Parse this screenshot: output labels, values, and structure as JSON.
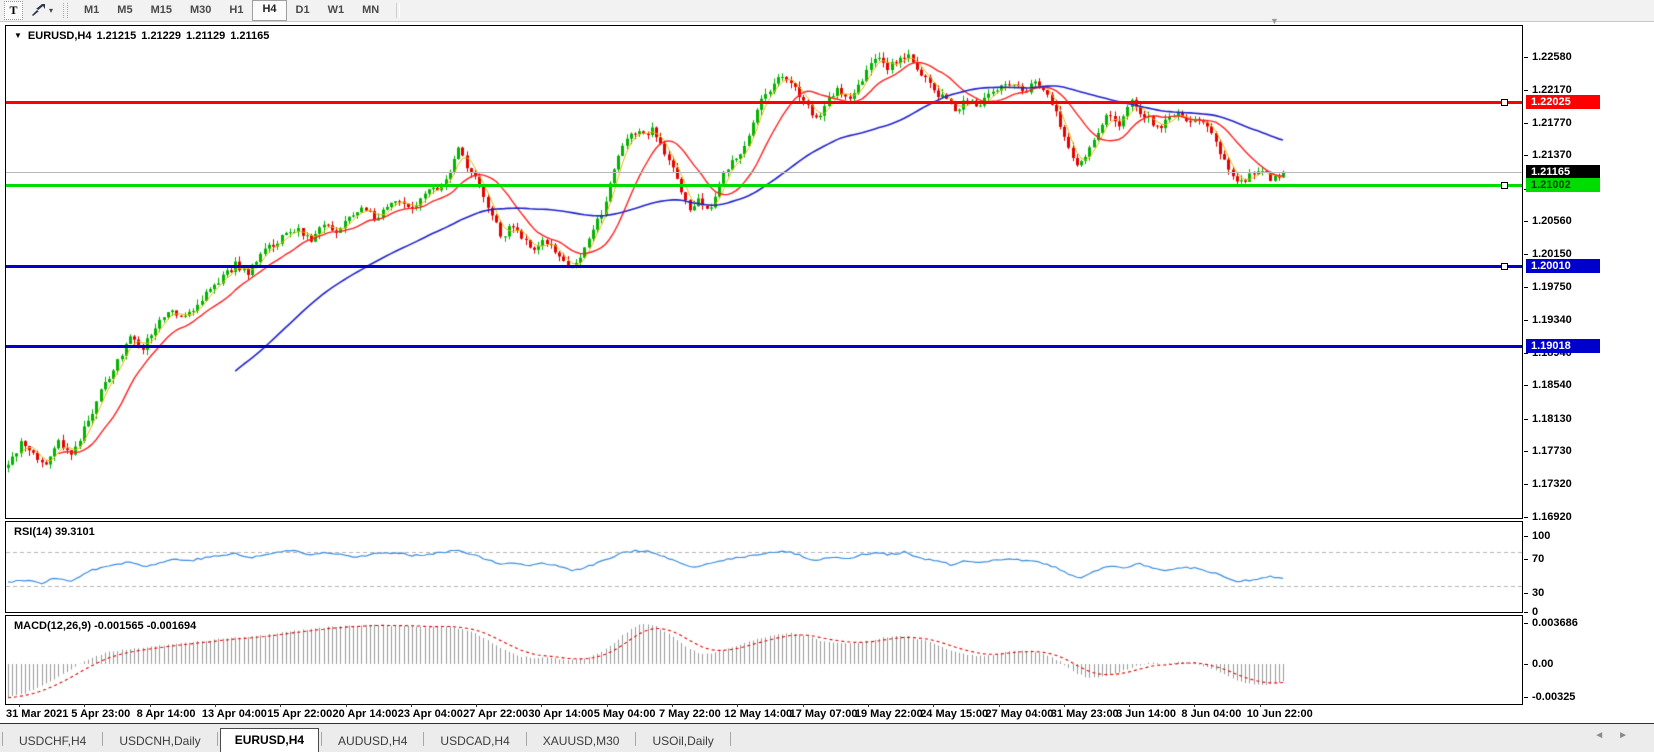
{
  "toolbar": {
    "text_tool_label": "T",
    "timeframes": [
      "M1",
      "M5",
      "M15",
      "M30",
      "H1",
      "H4",
      "D1",
      "W1",
      "MN"
    ],
    "active_timeframe": "H4"
  },
  "header": {
    "symbol_period": "EURUSD,H4",
    "quotes": {
      "o": "1.21215",
      "h": "1.21229",
      "l": "1.21129",
      "c": "1.21165"
    }
  },
  "price_axis": {
    "ticks": [
      "1.22580",
      "1.22170",
      "1.21770",
      "1.21370",
      "1.20960",
      "1.20560",
      "1.20150",
      "1.19750",
      "1.19340",
      "1.18940",
      "1.18540",
      "1.18130",
      "1.17730",
      "1.17320",
      "1.16920"
    ],
    "levels": [
      {
        "value": "1.22025",
        "color": "#ff0000",
        "text": "#ffffff",
        "thickness": 3,
        "handle": true
      },
      {
        "value": "1.21165",
        "color": "#b8b8b8",
        "badge_bg": "#000000",
        "text": "#ffffff",
        "thickness": 1,
        "handle": false
      },
      {
        "value": "1.21002",
        "color": "#00dc00",
        "text": "#004000",
        "thickness": 3,
        "handle": true
      },
      {
        "value": "1.20010",
        "color": "#0000cd",
        "text": "#ffffff",
        "thickness": 3,
        "handle": true
      },
      {
        "value": "1.19018",
        "color": "#0000cd",
        "text": "#ffffff",
        "thickness": 3,
        "handle": false
      }
    ]
  },
  "rsi": {
    "label": "RSI(14)",
    "value": "39.3101",
    "axis_labels": [
      "100",
      "70",
      "30",
      "0"
    ],
    "line_color": "#3c8ce0"
  },
  "macd": {
    "label": "MACD(12,26,9)",
    "main_value": "-0.001565",
    "signal_value": "-0.001694",
    "axis_labels": [
      "0.003686",
      "0.00",
      "-0.00325"
    ],
    "histogram_color": "#9a9a9a",
    "signal_color": "#e00000"
  },
  "x_axis": {
    "labels": [
      "31 Mar 2021",
      "5 Apr 23:00",
      "8 Apr 14:00",
      "13 Apr 04:00",
      "15 Apr 22:00",
      "20 Apr 14:00",
      "23 Apr 04:00",
      "27 Apr 22:00",
      "30 Apr 14:00",
      "5 May 04:00",
      "7 May 22:00",
      "12 May 14:00",
      "17 May 07:00",
      "19 May 22:00",
      "24 May 15:00",
      "27 May 04:00",
      "31 May 23:00",
      "3 Jun 14:00",
      "8 Jun 04:00",
      "10 Jun 22:00"
    ]
  },
  "tabbar": {
    "tabs": [
      "USDCHF,H4",
      "USDCNH,Daily",
      "EURUSD,H4",
      "AUDUSD,H4",
      "USDCAD,H4",
      "XAUUSD,M30",
      "USOil,Daily"
    ],
    "active": "EURUSD,H4"
  },
  "chart_data": {
    "type": "candlestick",
    "symbol": "EURUSD",
    "period": "H4",
    "current": {
      "open": 1.21215,
      "high": 1.21229,
      "low": 1.21129,
      "close": 1.21165
    },
    "y_axis_range": [
      1.1692,
      1.2296
    ],
    "horizontal_levels": [
      1.22025,
      1.21165,
      1.21002,
      1.2001,
      1.19018
    ],
    "colors": {
      "up": "#00b400",
      "down": "#e60000",
      "ma_fast": "#e6b800",
      "ma_mid": "#ff2020",
      "ma_slow": "#2222cc"
    },
    "price_path": [
      [
        8,
        1.1755
      ],
      [
        20,
        1.1782
      ],
      [
        32,
        1.1768
      ],
      [
        45,
        1.1758
      ],
      [
        58,
        1.1784
      ],
      [
        71,
        1.177
      ],
      [
        84,
        1.18
      ],
      [
        100,
        1.1845
      ],
      [
        115,
        1.188
      ],
      [
        130,
        1.191
      ],
      [
        142,
        1.19
      ],
      [
        155,
        1.1925
      ],
      [
        170,
        1.1945
      ],
      [
        182,
        1.1935
      ],
      [
        195,
        1.1952
      ],
      [
        208,
        1.1968
      ],
      [
        222,
        1.1988
      ],
      [
        235,
        1.2002
      ],
      [
        248,
        1.1992
      ],
      [
        260,
        1.2012
      ],
      [
        272,
        1.2028
      ],
      [
        285,
        1.2038
      ],
      [
        298,
        1.2048
      ],
      [
        310,
        1.203
      ],
      [
        322,
        1.2052
      ],
      [
        335,
        1.204
      ],
      [
        350,
        1.2062
      ],
      [
        362,
        1.2075
      ],
      [
        375,
        1.206
      ],
      [
        388,
        1.2072
      ],
      [
        400,
        1.2082
      ],
      [
        412,
        1.2075
      ],
      [
        424,
        1.2088
      ],
      [
        436,
        1.2095
      ],
      [
        448,
        1.211
      ],
      [
        458,
        1.2148
      ],
      [
        466,
        1.2125
      ],
      [
        475,
        1.2112
      ],
      [
        484,
        1.2085
      ],
      [
        493,
        1.206
      ],
      [
        502,
        1.2035
      ],
      [
        512,
        1.2052
      ],
      [
        522,
        1.2035
      ],
      [
        532,
        1.2018
      ],
      [
        542,
        1.2035
      ],
      [
        552,
        1.2025
      ],
      [
        562,
        1.2012
      ],
      [
        572,
        1.1995
      ],
      [
        582,
        1.2015
      ],
      [
        592,
        1.204
      ],
      [
        602,
        1.207
      ],
      [
        612,
        1.211
      ],
      [
        622,
        1.215
      ],
      [
        632,
        1.2168
      ],
      [
        642,
        1.216
      ],
      [
        652,
        1.2168
      ],
      [
        660,
        1.2152
      ],
      [
        670,
        1.2128
      ],
      [
        680,
        1.2098
      ],
      [
        690,
        1.2072
      ],
      [
        700,
        1.2082
      ],
      [
        710,
        1.207
      ],
      [
        718,
        1.2098
      ],
      [
        728,
        1.2125
      ],
      [
        738,
        1.2138
      ],
      [
        748,
        1.2155
      ],
      [
        758,
        1.2198
      ],
      [
        768,
        1.2215
      ],
      [
        778,
        1.2235
      ],
      [
        788,
        1.2228
      ],
      [
        798,
        1.2215
      ],
      [
        808,
        1.2195
      ],
      [
        818,
        1.2183
      ],
      [
        828,
        1.2205
      ],
      [
        838,
        1.2218
      ],
      [
        848,
        1.2205
      ],
      [
        858,
        1.2225
      ],
      [
        868,
        1.2242
      ],
      [
        878,
        1.2258
      ],
      [
        888,
        1.2245
      ],
      [
        898,
        1.2252
      ],
      [
        908,
        1.2264
      ],
      [
        916,
        1.224
      ],
      [
        926,
        1.2228
      ],
      [
        936,
        1.2215
      ],
      [
        946,
        1.2205
      ],
      [
        956,
        1.2192
      ],
      [
        966,
        1.2208
      ],
      [
        976,
        1.2198
      ],
      [
        986,
        1.2208
      ],
      [
        996,
        1.2218
      ],
      [
        1006,
        1.2228
      ],
      [
        1016,
        1.2222
      ],
      [
        1026,
        1.2215
      ],
      [
        1036,
        1.2228
      ],
      [
        1046,
        1.2212
      ],
      [
        1056,
        1.219
      ],
      [
        1066,
        1.2155
      ],
      [
        1078,
        1.2122
      ],
      [
        1090,
        1.215
      ],
      [
        1100,
        1.2172
      ],
      [
        1110,
        1.2188
      ],
      [
        1120,
        1.2175
      ],
      [
        1130,
        1.221
      ],
      [
        1140,
        1.2192
      ],
      [
        1150,
        1.218
      ],
      [
        1160,
        1.2172
      ],
      [
        1170,
        1.2182
      ],
      [
        1180,
        1.2188
      ],
      [
        1190,
        1.218
      ],
      [
        1200,
        1.2178
      ],
      [
        1210,
        1.2165
      ],
      [
        1220,
        1.214
      ],
      [
        1230,
        1.2118
      ],
      [
        1240,
        1.2105
      ],
      [
        1250,
        1.2112
      ],
      [
        1262,
        1.2118
      ],
      [
        1272,
        1.2108
      ],
      [
        1283,
        1.21165
      ]
    ],
    "rsi_path": [
      [
        8,
        35
      ],
      [
        25,
        37
      ],
      [
        40,
        33
      ],
      [
        55,
        39
      ],
      [
        70,
        36
      ],
      [
        85,
        45
      ],
      [
        100,
        52
      ],
      [
        115,
        56
      ],
      [
        130,
        58
      ],
      [
        145,
        53
      ],
      [
        160,
        57
      ],
      [
        175,
        62
      ],
      [
        190,
        60
      ],
      [
        205,
        63
      ],
      [
        220,
        66
      ],
      [
        235,
        68
      ],
      [
        250,
        63
      ],
      [
        265,
        67
      ],
      [
        280,
        70
      ],
      [
        295,
        72
      ],
      [
        310,
        66
      ],
      [
        325,
        70
      ],
      [
        340,
        68
      ],
      [
        355,
        64
      ],
      [
        370,
        67
      ],
      [
        385,
        69
      ],
      [
        400,
        68
      ],
      [
        415,
        66
      ],
      [
        430,
        68
      ],
      [
        445,
        70
      ],
      [
        458,
        73
      ],
      [
        470,
        68
      ],
      [
        485,
        62
      ],
      [
        500,
        55
      ],
      [
        515,
        58
      ],
      [
        530,
        54
      ],
      [
        545,
        57
      ],
      [
        560,
        53
      ],
      [
        575,
        48
      ],
      [
        590,
        54
      ],
      [
        605,
        60
      ],
      [
        620,
        68
      ],
      [
        635,
        72
      ],
      [
        650,
        70
      ],
      [
        665,
        64
      ],
      [
        680,
        56
      ],
      [
        695,
        52
      ],
      [
        710,
        56
      ],
      [
        725,
        61
      ],
      [
        740,
        64
      ],
      [
        755,
        66
      ],
      [
        770,
        69
      ],
      [
        785,
        71
      ],
      [
        800,
        66
      ],
      [
        815,
        60
      ],
      [
        830,
        64
      ],
      [
        845,
        62
      ],
      [
        860,
        66
      ],
      [
        875,
        70
      ],
      [
        890,
        67
      ],
      [
        905,
        70
      ],
      [
        920,
        62
      ],
      [
        935,
        60
      ],
      [
        950,
        55
      ],
      [
        965,
        59
      ],
      [
        980,
        57
      ],
      [
        995,
        60
      ],
      [
        1010,
        63
      ],
      [
        1025,
        60
      ],
      [
        1040,
        58
      ],
      [
        1055,
        52
      ],
      [
        1070,
        43
      ],
      [
        1082,
        40
      ],
      [
        1095,
        48
      ],
      [
        1110,
        54
      ],
      [
        1125,
        50
      ],
      [
        1140,
        57
      ],
      [
        1152,
        50
      ],
      [
        1165,
        48
      ],
      [
        1180,
        52
      ],
      [
        1195,
        51
      ],
      [
        1210,
        47
      ],
      [
        1225,
        40
      ],
      [
        1240,
        35
      ],
      [
        1255,
        38
      ],
      [
        1268,
        41
      ],
      [
        1283,
        39.3
      ]
    ],
    "macd_path": [
      [
        8,
        -0.003
      ],
      [
        25,
        -0.0026
      ],
      [
        45,
        -0.0018
      ],
      [
        65,
        -0.0008
      ],
      [
        85,
        0.0003
      ],
      [
        105,
        0.001
      ],
      [
        125,
        0.0013
      ],
      [
        145,
        0.0015
      ],
      [
        165,
        0.0017
      ],
      [
        185,
        0.0019
      ],
      [
        205,
        0.0021
      ],
      [
        225,
        0.0023
      ],
      [
        245,
        0.0024
      ],
      [
        265,
        0.0026
      ],
      [
        285,
        0.0029
      ],
      [
        305,
        0.0031
      ],
      [
        325,
        0.0033
      ],
      [
        345,
        0.0034
      ],
      [
        365,
        0.0035
      ],
      [
        385,
        0.0035
      ],
      [
        405,
        0.0034
      ],
      [
        425,
        0.0033
      ],
      [
        445,
        0.0034
      ],
      [
        460,
        0.0032
      ],
      [
        475,
        0.0028
      ],
      [
        490,
        0.002
      ],
      [
        505,
        0.0012
      ],
      [
        520,
        0.0007
      ],
      [
        535,
        0.0005
      ],
      [
        550,
        0.0006
      ],
      [
        565,
        0.0003
      ],
      [
        580,
        0.0004
      ],
      [
        595,
        0.0008
      ],
      [
        610,
        0.0016
      ],
      [
        625,
        0.0028
      ],
      [
        640,
        0.0036
      ],
      [
        655,
        0.0034
      ],
      [
        670,
        0.0027
      ],
      [
        685,
        0.0016
      ],
      [
        700,
        0.0009
      ],
      [
        715,
        0.001
      ],
      [
        730,
        0.0015
      ],
      [
        745,
        0.0019
      ],
      [
        760,
        0.0023
      ],
      [
        775,
        0.0026
      ],
      [
        790,
        0.0028
      ],
      [
        805,
        0.0026
      ],
      [
        820,
        0.0021
      ],
      [
        835,
        0.0019
      ],
      [
        850,
        0.0018
      ],
      [
        865,
        0.002
      ],
      [
        880,
        0.0023
      ],
      [
        895,
        0.0025
      ],
      [
        910,
        0.0024
      ],
      [
        925,
        0.0021
      ],
      [
        940,
        0.0016
      ],
      [
        955,
        0.0011
      ],
      [
        970,
        0.0008
      ],
      [
        985,
        0.0007
      ],
      [
        1000,
        0.001
      ],
      [
        1015,
        0.0012
      ],
      [
        1030,
        0.0012
      ],
      [
        1045,
        0.0009
      ],
      [
        1060,
        0.0002
      ],
      [
        1075,
        -0.0008
      ],
      [
        1090,
        -0.0013
      ],
      [
        1105,
        -0.0011
      ],
      [
        1120,
        -0.0007
      ],
      [
        1135,
        -0.0002
      ],
      [
        1150,
        0.0001
      ],
      [
        1165,
        0.0
      ],
      [
        1180,
        0.0002
      ],
      [
        1195,
        0.0001
      ],
      [
        1210,
        -0.0004
      ],
      [
        1225,
        -0.001
      ],
      [
        1240,
        -0.0016
      ],
      [
        1255,
        -0.0019
      ],
      [
        1270,
        -0.0018
      ],
      [
        1283,
        -0.00157
      ]
    ]
  }
}
